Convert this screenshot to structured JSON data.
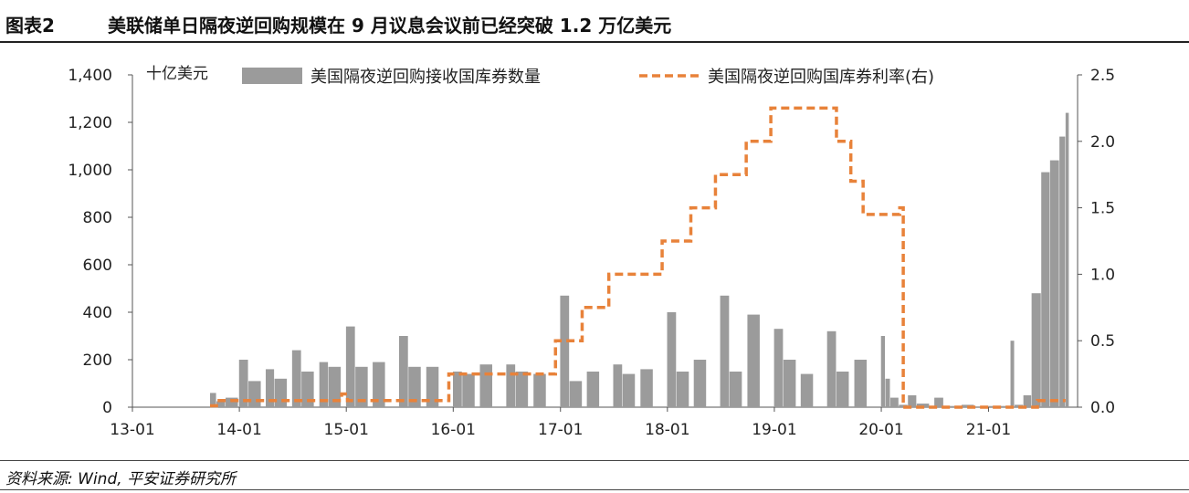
{
  "header": {
    "figure_label": "图表2",
    "title": "美联储单日隔夜逆回购规模在 9 月议息会议前已经突破 1.2 万亿美元"
  },
  "source": "资料来源: Wind, 平安证券研究所",
  "chart_data": {
    "type": "bar+line",
    "unit_left": "十亿美元",
    "x_ticks": [
      "13-01",
      "14-01",
      "15-01",
      "16-01",
      "17-01",
      "18-01",
      "19-01",
      "20-01",
      "21-01"
    ],
    "y_left": {
      "range": [
        0,
        1400
      ],
      "ticks": [
        "0",
        "200",
        "400",
        "600",
        "800",
        "1,000",
        "1,200",
        "1,400"
      ]
    },
    "y_right": {
      "range": [
        0,
        2.5
      ],
      "ticks": [
        "0.0",
        "0.5",
        "1.0",
        "1.5",
        "2.0",
        "2.5"
      ]
    },
    "legend": [
      {
        "name": "美国隔夜逆回购接收国库券数量",
        "style": "bar",
        "color": "#9b9b9b"
      },
      {
        "name": "美国隔夜逆回购国库券利率(右)",
        "style": "dashed-line",
        "color": "#e8823a"
      }
    ],
    "series_bar": {
      "name": "美国隔夜逆回购接收国库券数量",
      "points": [
        [
          "2013-09-23",
          60
        ],
        [
          "2013-10-15",
          25
        ],
        [
          "2013-11-15",
          40
        ],
        [
          "2013-12-31",
          200
        ],
        [
          "2014-02-01",
          110
        ],
        [
          "2014-04-01",
          160
        ],
        [
          "2014-05-01",
          120
        ],
        [
          "2014-06-30",
          240
        ],
        [
          "2014-08-01",
          150
        ],
        [
          "2014-10-01",
          190
        ],
        [
          "2014-11-01",
          170
        ],
        [
          "2014-12-31",
          340
        ],
        [
          "2015-02-01",
          170
        ],
        [
          "2015-04-01",
          190
        ],
        [
          "2015-06-30",
          300
        ],
        [
          "2015-08-01",
          170
        ],
        [
          "2015-10-01",
          170
        ],
        [
          "2015-12-31",
          150
        ],
        [
          "2016-02-01",
          140
        ],
        [
          "2016-04-01",
          180
        ],
        [
          "2016-06-30",
          180
        ],
        [
          "2016-08-01",
          150
        ],
        [
          "2016-10-01",
          140
        ],
        [
          "2016-12-31",
          470
        ],
        [
          "2017-02-01",
          110
        ],
        [
          "2017-04-01",
          150
        ],
        [
          "2017-06-30",
          180
        ],
        [
          "2017-08-01",
          140
        ],
        [
          "2017-10-01",
          160
        ],
        [
          "2017-12-31",
          400
        ],
        [
          "2018-02-01",
          150
        ],
        [
          "2018-04-01",
          200
        ],
        [
          "2018-06-30",
          470
        ],
        [
          "2018-08-01",
          150
        ],
        [
          "2018-10-01",
          390
        ],
        [
          "2018-12-31",
          330
        ],
        [
          "2019-02-01",
          200
        ],
        [
          "2019-04-01",
          140
        ],
        [
          "2019-06-30",
          320
        ],
        [
          "2019-08-01",
          150
        ],
        [
          "2019-10-01",
          200
        ],
        [
          "2019-12-31",
          300
        ],
        [
          "2020-01-15",
          120
        ],
        [
          "2020-02-01",
          40
        ],
        [
          "2020-03-01",
          10
        ],
        [
          "2020-04-01",
          50
        ],
        [
          "2020-05-01",
          15
        ],
        [
          "2020-06-30",
          40
        ],
        [
          "2020-08-01",
          5
        ],
        [
          "2020-10-01",
          10
        ],
        [
          "2020-12-31",
          5
        ],
        [
          "2021-02-01",
          5
        ],
        [
          "2021-03-17",
          280
        ],
        [
          "2021-03-31",
          10
        ],
        [
          "2021-04-30",
          50
        ],
        [
          "2021-05-28",
          480
        ],
        [
          "2021-06-30",
          990
        ],
        [
          "2021-07-30",
          1040
        ],
        [
          "2021-08-31",
          1140
        ],
        [
          "2021-09-21",
          1240
        ]
      ]
    },
    "series_line": {
      "name": "美国隔夜逆回购国库券利率(右)",
      "steps": [
        [
          "2013-09-23",
          0.01
        ],
        [
          "2013-10-15",
          0.05
        ],
        [
          "2014-12-16",
          0.1
        ],
        [
          "2015-01-05",
          0.05
        ],
        [
          "2015-12-17",
          0.25
        ],
        [
          "2016-12-15",
          0.5
        ],
        [
          "2017-03-16",
          0.75
        ],
        [
          "2017-06-15",
          1.0
        ],
        [
          "2017-12-14",
          1.25
        ],
        [
          "2018-03-22",
          1.5
        ],
        [
          "2018-06-14",
          1.75
        ],
        [
          "2018-09-27",
          2.0
        ],
        [
          "2018-12-20",
          2.25
        ],
        [
          "2019-08-01",
          2.0
        ],
        [
          "2019-09-19",
          1.7
        ],
        [
          "2019-10-31",
          1.45
        ],
        [
          "2020-03-04",
          1.5
        ],
        [
          "2020-03-16",
          0.0
        ],
        [
          "2021-06-17",
          0.05
        ],
        [
          "2021-09-21",
          0.05
        ]
      ]
    }
  }
}
